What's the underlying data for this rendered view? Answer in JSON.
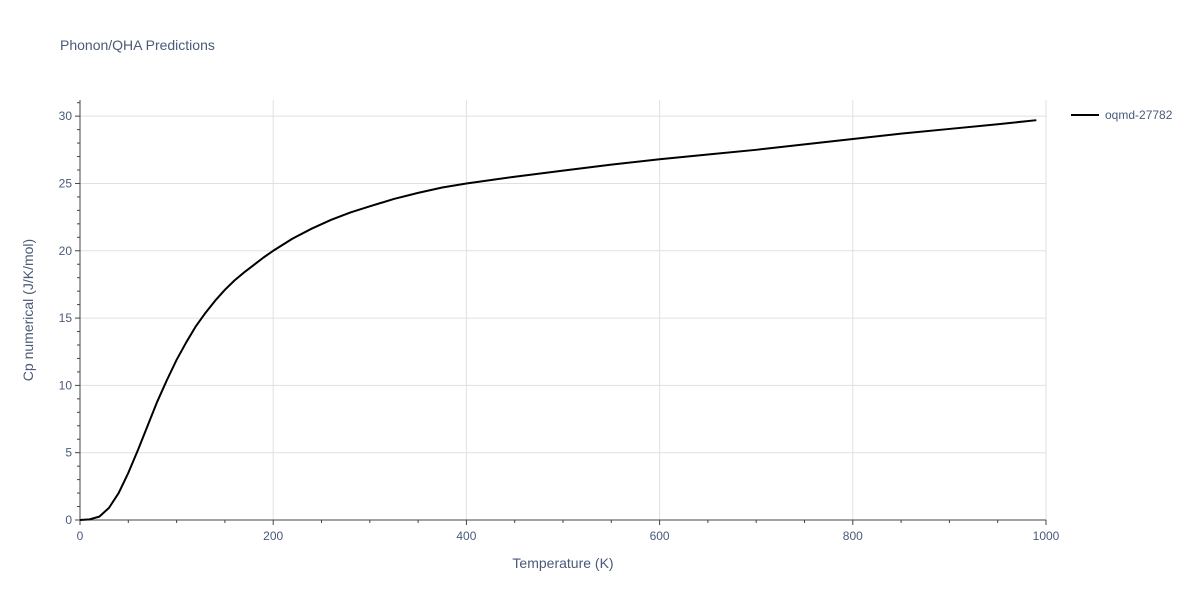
{
  "chart_data": {
    "type": "line",
    "title": "Phonon/QHA Predictions",
    "xlabel": "Temperature (K)",
    "ylabel": "Cp numerical (J/K/mol)",
    "xlim": [
      0,
      1000
    ],
    "ylim": [
      0,
      31.2
    ],
    "xticks": [
      0,
      200,
      400,
      600,
      800,
      1000
    ],
    "yticks": [
      0,
      5,
      10,
      15,
      20,
      25,
      30
    ],
    "grid": true,
    "legend_position": "top-right",
    "series": [
      {
        "name": "oqmd-27782",
        "color": "#000000",
        "x": [
          0,
          10,
          20,
          30,
          40,
          50,
          60,
          70,
          80,
          90,
          100,
          110,
          120,
          130,
          140,
          150,
          160,
          170,
          180,
          190,
          200,
          220,
          240,
          260,
          280,
          300,
          325,
          350,
          375,
          400,
          450,
          500,
          550,
          600,
          650,
          700,
          750,
          800,
          850,
          900,
          950,
          990
        ],
        "y": [
          0,
          0.05,
          0.25,
          0.9,
          2.0,
          3.5,
          5.2,
          7.0,
          8.8,
          10.4,
          11.9,
          13.2,
          14.4,
          15.4,
          16.3,
          17.1,
          17.8,
          18.4,
          18.95,
          19.5,
          20.0,
          20.9,
          21.65,
          22.3,
          22.85,
          23.3,
          23.85,
          24.3,
          24.7,
          25.0,
          25.5,
          25.95,
          26.4,
          26.8,
          27.15,
          27.5,
          27.9,
          28.3,
          28.7,
          29.05,
          29.4,
          29.7
        ]
      }
    ]
  }
}
